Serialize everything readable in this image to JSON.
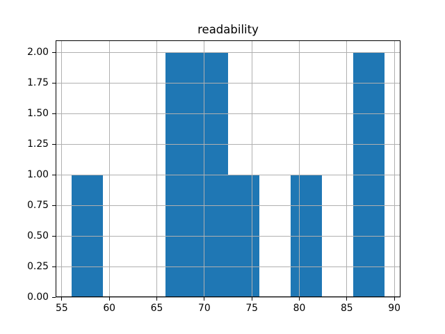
{
  "figure": {
    "background_color": "#ffffff",
    "text_color": "#000000",
    "frame_color": "#000000"
  },
  "chart_data": {
    "type": "bar",
    "subtype": "histogram",
    "title": "readability",
    "xlabel": "",
    "ylabel": "",
    "bar_color": "#1f77b4",
    "grid_color": "#b0b0b0",
    "grid": true,
    "legend": false,
    "bin_edges": [
      56,
      59.3,
      62.6,
      65.9,
      69.2,
      72.5,
      75.8,
      79.1,
      82.4,
      85.7,
      89
    ],
    "counts": [
      1,
      0,
      0,
      2,
      2,
      1,
      0,
      1,
      0,
      2
    ],
    "xlim": [
      54.35,
      90.65
    ],
    "ylim": [
      0,
      2.1
    ],
    "x_ticks": [
      55,
      60,
      65,
      70,
      75,
      80,
      85,
      90
    ],
    "y_ticks": [
      0,
      0.25,
      0.5,
      0.75,
      1,
      1.25,
      1.5,
      1.75,
      2
    ],
    "x_tick_labels": [
      "55",
      "60",
      "65",
      "70",
      "75",
      "80",
      "85",
      "90"
    ],
    "y_tick_labels": [
      "0.00",
      "0.25",
      "0.50",
      "0.75",
      "1.00",
      "1.25",
      "1.50",
      "1.75",
      "2.00"
    ]
  }
}
